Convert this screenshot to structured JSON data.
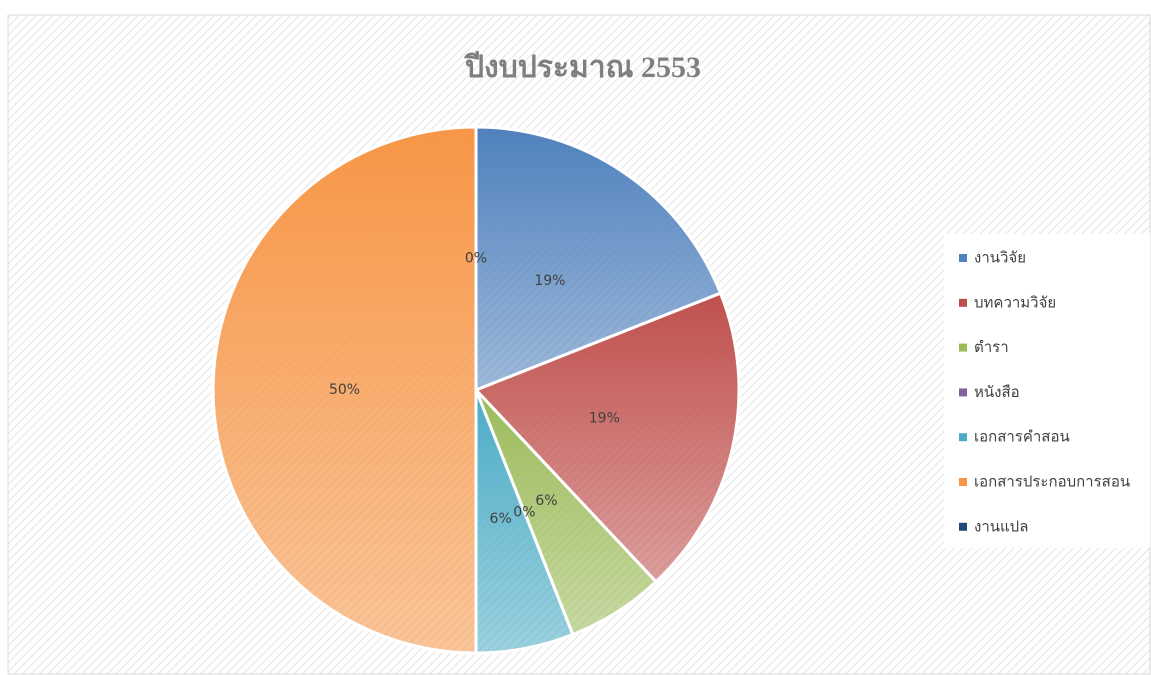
{
  "chart_data": {
    "type": "pie",
    "title": "ปีงบประมาณ 2553",
    "categories": [
      "งานวิจัย",
      "บทความวิจัย",
      "ตำรา",
      "หนังสือ",
      "เอกสารคำสอน",
      "เอกสารประกอบการสอน",
      "งานแปล"
    ],
    "values": [
      19,
      19,
      6,
      0,
      6,
      50,
      0
    ],
    "value_labels": [
      "19%",
      "19%",
      "6%",
      "0%",
      "6%",
      "50%",
      "0%"
    ],
    "colors": [
      "#4f81bd",
      "#c0504d",
      "#9bbb59",
      "#8064a2",
      "#4bacc6",
      "#f79646",
      "#1f497d"
    ],
    "legend": "right"
  }
}
